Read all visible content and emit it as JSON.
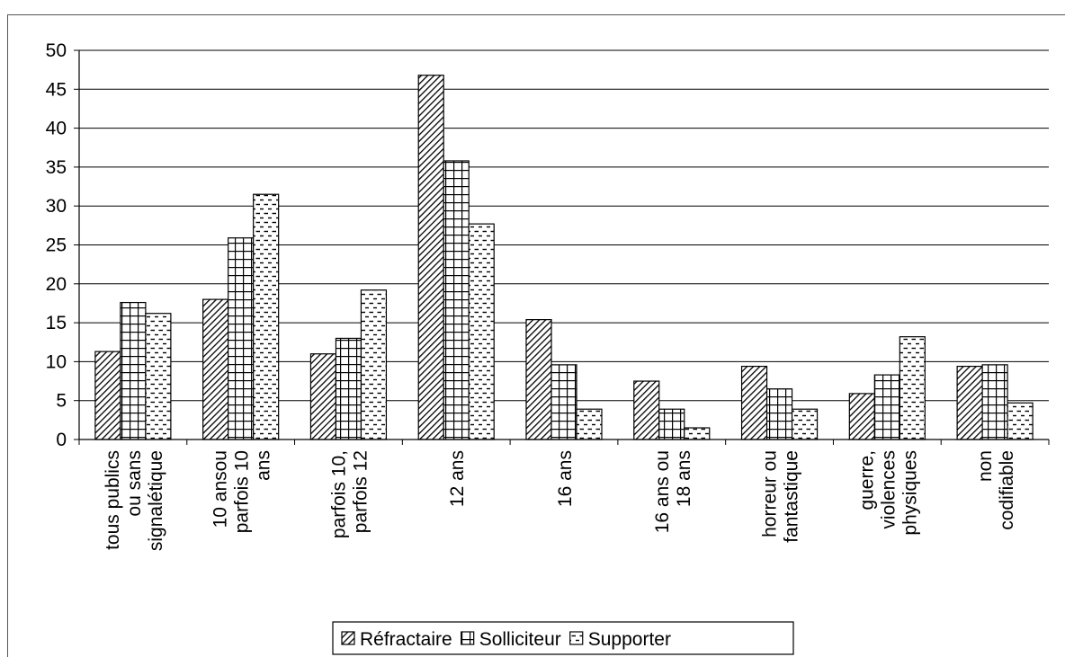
{
  "chart_data": {
    "type": "bar",
    "title": "",
    "xlabel": "",
    "ylabel": "",
    "ylim": [
      0,
      50
    ],
    "yticks": [
      0,
      5,
      10,
      15,
      20,
      25,
      30,
      35,
      40,
      45,
      50
    ],
    "grid": true,
    "legend_position": "bottom",
    "categories": [
      [
        "tous publics",
        "ou sans",
        "signalétique"
      ],
      [
        "10 ansou",
        "parfois 10",
        "ans"
      ],
      [
        "parfois 10,",
        "parfois 12"
      ],
      [
        "12 ans"
      ],
      [
        "16 ans"
      ],
      [
        "16 ans ou",
        "18 ans"
      ],
      [
        "horreur ou",
        "fantastique"
      ],
      [
        "guerre,",
        "violences",
        "physiques"
      ],
      [
        "non",
        "codifiable"
      ]
    ],
    "series": [
      {
        "name": "Réfractaire",
        "pattern": "diagonal",
        "values": [
          11.3,
          18,
          11,
          46.8,
          15.4,
          7.5,
          9.4,
          5.9,
          9.4
        ]
      },
      {
        "name": "Solliciteur",
        "pattern": "grid",
        "values": [
          17.6,
          25.9,
          13,
          35.8,
          9.6,
          3.9,
          6.5,
          8.3,
          9.6
        ]
      },
      {
        "name": "Supporter",
        "pattern": "dashes",
        "values": [
          16.2,
          31.5,
          19.2,
          27.7,
          3.9,
          1.5,
          3.9,
          13.2,
          4.7
        ]
      }
    ]
  }
}
